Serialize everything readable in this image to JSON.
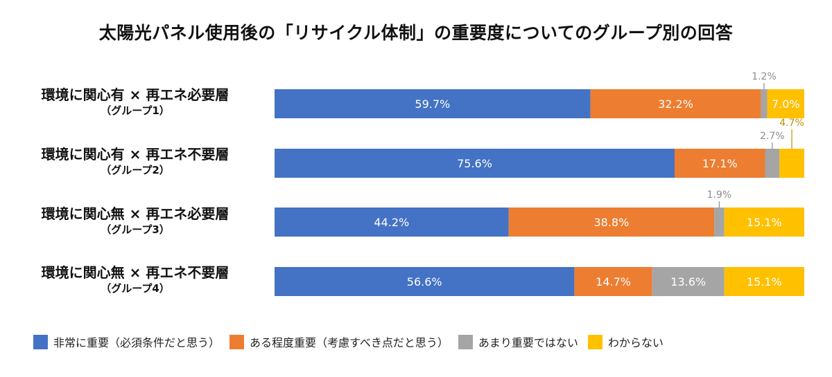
{
  "chart_data": {
    "type": "bar",
    "orientation": "horizontal",
    "stacked": true,
    "title": "太陽光パネル使用後の「リサイクル体制」の重要度についてのグループ別の回答",
    "categories": [
      {
        "line1": "環境に関心有 × 再エネ必要層",
        "line2": "（グループ1）"
      },
      {
        "line1": "環境に関心有 × 再エネ不要層",
        "line2": "（グループ2）"
      },
      {
        "line1": "環境に関心無 × 再エネ必要層",
        "line2": "（グループ3）"
      },
      {
        "line1": "環境に関心無 × 再エネ不要層",
        "line2": "（グループ4）"
      }
    ],
    "series": [
      {
        "name": "非常に重要（必須条件だと思う）",
        "color": "#4472c4",
        "values": [
          59.7,
          75.6,
          44.2,
          56.6
        ],
        "labels": [
          "59.7%",
          "75.6%",
          "44.2%",
          "56.6%"
        ]
      },
      {
        "name": "ある程度重要（考慮すべき点だと思う）",
        "color": "#ed7d31",
        "values": [
          32.2,
          17.1,
          38.8,
          14.7
        ],
        "labels": [
          "32.2%",
          "17.1%",
          "38.8%",
          "14.7%"
        ]
      },
      {
        "name": "あまり重要ではない",
        "color": "#a5a5a5",
        "values": [
          1.2,
          2.7,
          1.9,
          13.6
        ],
        "labels": [
          "1.2%",
          "2.7%",
          "1.9%",
          "13.6%"
        ]
      },
      {
        "name": "わからない",
        "color": "#ffc000",
        "values": [
          7.0,
          4.7,
          15.1,
          15.1
        ],
        "labels": [
          "7.0%",
          "4.7%",
          "15.1%",
          "15.1%"
        ]
      }
    ],
    "xlim": [
      0,
      100
    ],
    "grid": false,
    "legend_position": "bottom"
  }
}
